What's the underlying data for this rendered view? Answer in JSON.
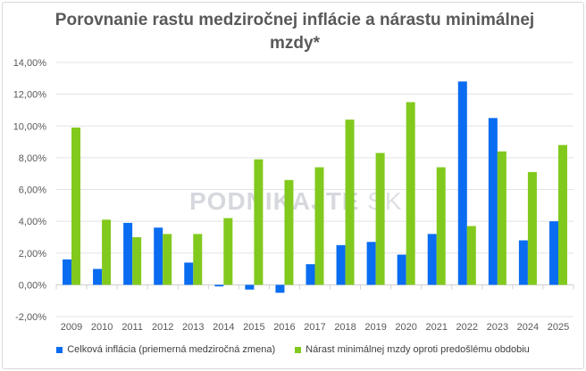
{
  "chart_data": {
    "type": "bar",
    "title": "Porovnanie rastu medziročnej inflácie a nárastu minimálnej mzdy*",
    "categories": [
      "2009",
      "2010",
      "2011",
      "2012",
      "2013",
      "2014",
      "2015",
      "2016",
      "2017",
      "2018",
      "2019",
      "2020",
      "2021",
      "2022",
      "2023",
      "2024",
      "2025"
    ],
    "series": [
      {
        "name": "Celková inflácia (priemerná medziročná zmena)",
        "color": "#0a6cf0",
        "values": [
          1.6,
          1.0,
          3.9,
          3.6,
          1.4,
          -0.1,
          -0.3,
          -0.5,
          1.3,
          2.5,
          2.7,
          1.9,
          3.2,
          12.8,
          10.5,
          2.8,
          4.0
        ]
      },
      {
        "name": "Nárast minimálnej mzdy oproti predošlému obdobiu",
        "color": "#82c91e",
        "values": [
          9.9,
          4.1,
          3.0,
          3.2,
          3.2,
          4.2,
          7.9,
          6.6,
          7.4,
          10.4,
          8.3,
          11.5,
          7.4,
          3.7,
          8.4,
          7.1,
          8.8
        ]
      }
    ],
    "ylim": [
      -2,
      14
    ],
    "yticks": [
      -2,
      0,
      2,
      4,
      6,
      8,
      10,
      12,
      14
    ],
    "ytick_labels": [
      "-2,00%",
      "0,00%",
      "2,00%",
      "4,00%",
      "6,00%",
      "8,00%",
      "10,00%",
      "12,00%",
      "14,00%"
    ],
    "xlabel": "",
    "ylabel": "",
    "grid": true,
    "legend": "bottom"
  },
  "watermark": {
    "text": "PODNIKAJTE",
    "suffix": "SK"
  }
}
